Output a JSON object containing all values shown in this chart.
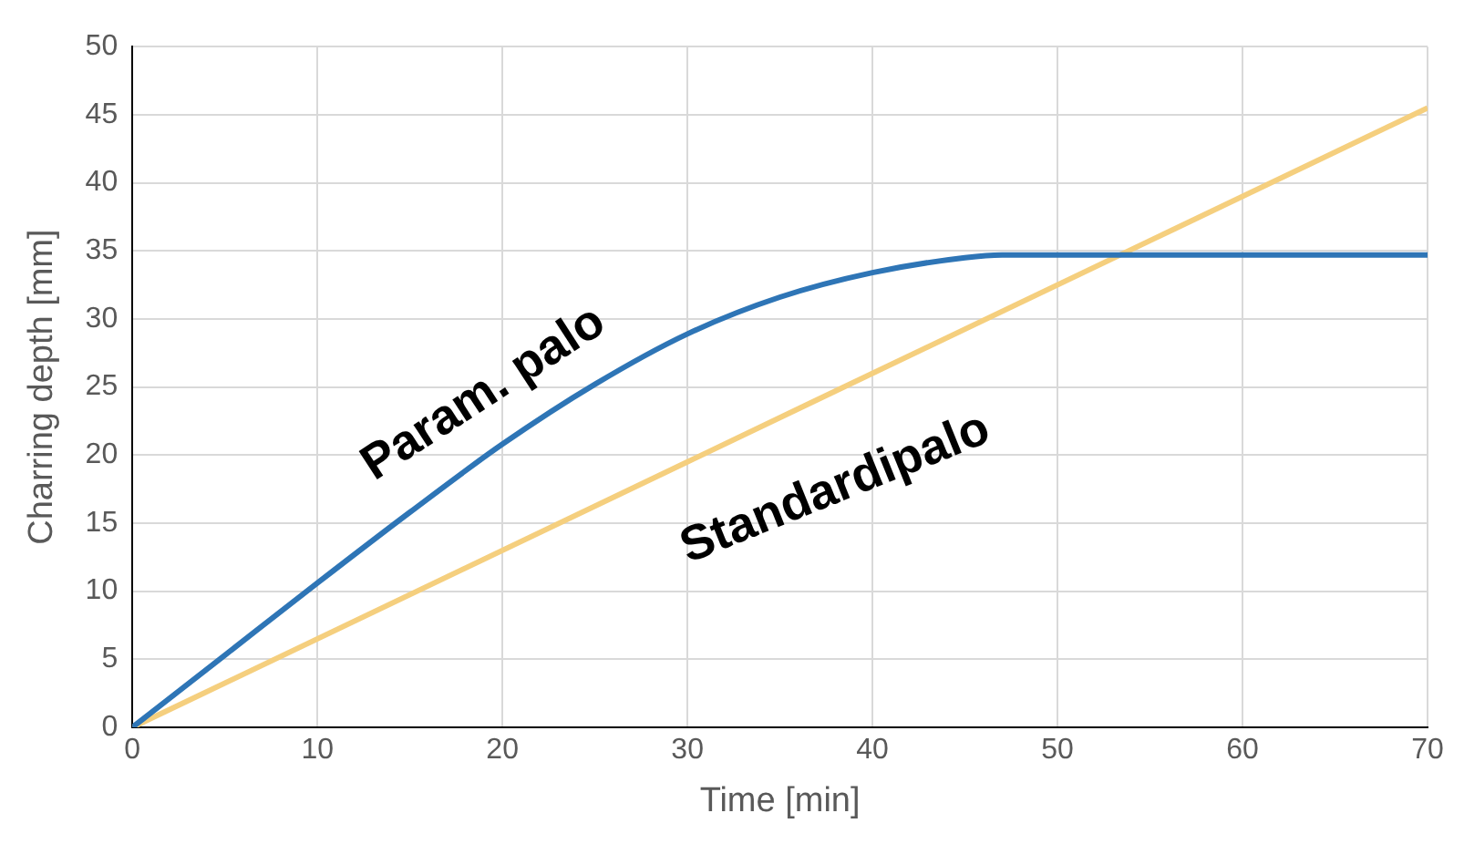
{
  "chart_data": {
    "type": "line",
    "xlabel": "Time [min]",
    "ylabel": "Charring depth [mm]",
    "series": [
      {
        "name": "Param. palo",
        "color": "#2e75b6",
        "x": [
          0,
          5,
          10,
          15,
          20,
          25,
          30,
          35,
          40,
          45,
          47,
          50,
          60,
          70
        ],
        "values": [
          0,
          5.3,
          10.6,
          15.8,
          20.8,
          25.2,
          28.9,
          31.6,
          33.4,
          34.5,
          34.7,
          34.7,
          34.7,
          34.7
        ]
      },
      {
        "name": "Standardipalo",
        "color": "#f5cf7e",
        "x": [
          0,
          70
        ],
        "values": [
          0,
          45.5
        ]
      }
    ],
    "xlim": [
      0,
      70
    ],
    "xticks": [
      0,
      10,
      20,
      30,
      40,
      50,
      60,
      70
    ],
    "ylim": [
      0,
      50
    ],
    "yticks": [
      0,
      5,
      10,
      15,
      20,
      25,
      30,
      35,
      40,
      45,
      50
    ],
    "grid": true,
    "legend": false,
    "marker": "none",
    "line_style": "solid"
  }
}
